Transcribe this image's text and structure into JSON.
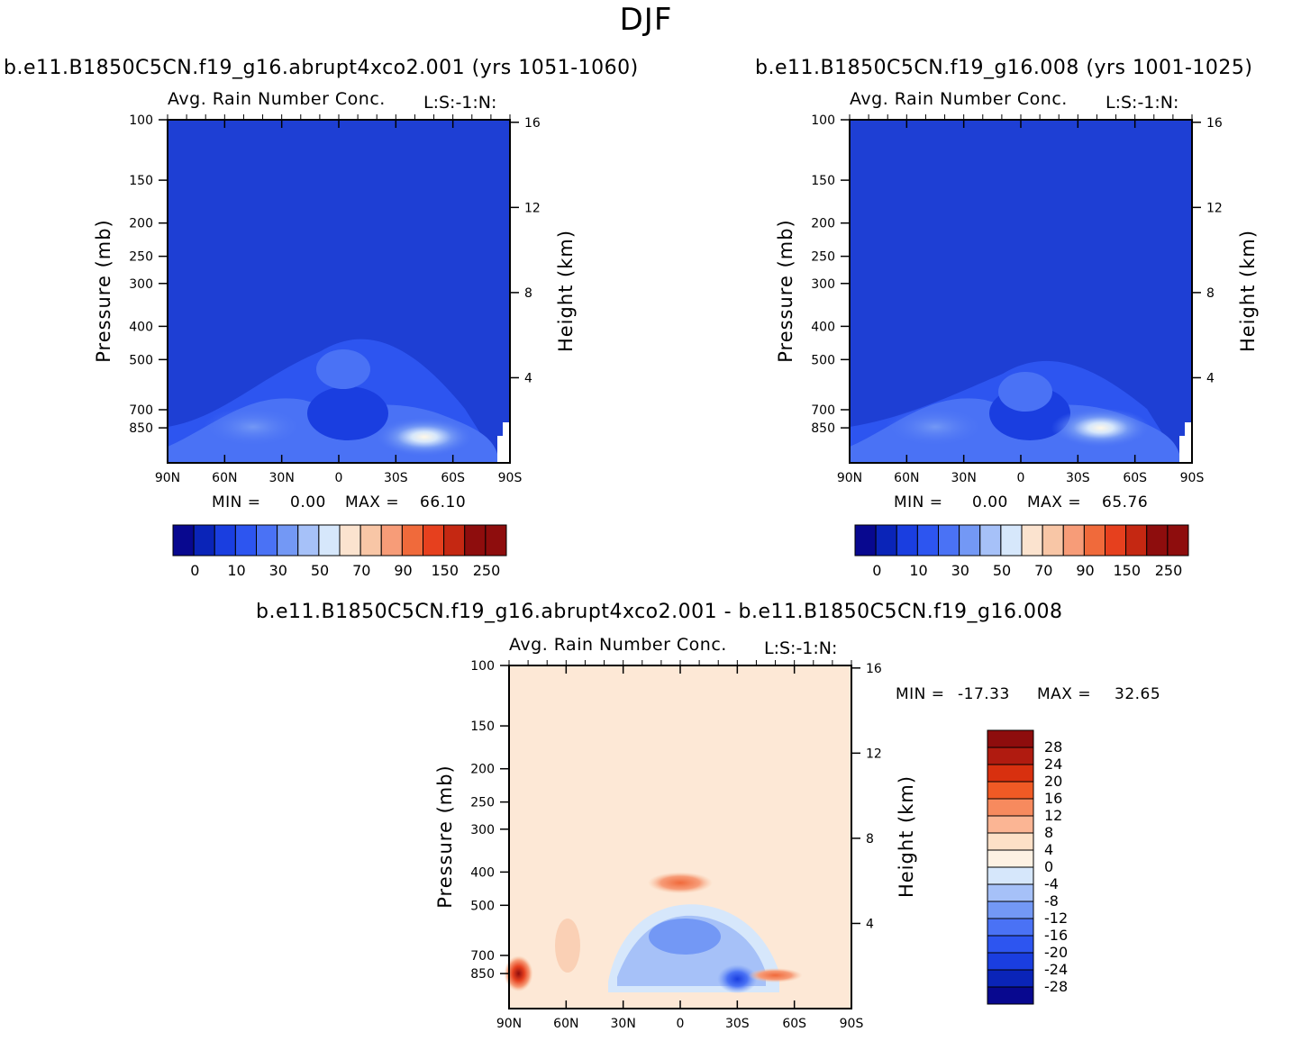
{
  "figure": {
    "title": "DJF"
  },
  "colors": {
    "blue_scale": [
      "#08088f",
      "#0a24b8",
      "#1a3ee0",
      "#2d55f0",
      "#4a72f5",
      "#7398f5",
      "#a6c1f8",
      "#d6e7fb"
    ],
    "red_scale": [
      "#fbe3cf",
      "#f8c6a6",
      "#f79c78",
      "#f06a3b",
      "#e6401e",
      "#c52812",
      "#8e0d0d"
    ],
    "plot_base": "#1e3fd4",
    "diff_base": "#fde8d6"
  },
  "chart_data": [
    {
      "type": "heatmap",
      "name": "panel-a",
      "case_title": "b.e11.B1850C5CN.f19_g16.abrupt4xco2.001 (yrs 1051-1060)",
      "title": "Avg. Rain Number Conc.",
      "tag": "L:S:-1:N:",
      "xlabel": "",
      "ylabel": "Pressure (mb)",
      "ylabel_right": "Height (km)",
      "x_ticks": [
        "90N",
        "60N",
        "30N",
        "0",
        "30S",
        "60S",
        "90S"
      ],
      "y_ticks": [
        "100",
        "150",
        "200",
        "250",
        "300",
        "400",
        "500",
        "700",
        "850"
      ],
      "y_right_ticks": [
        "16",
        "12",
        "8",
        "4"
      ],
      "x_range": [
        "90N",
        "90S"
      ],
      "y_range_mb": [
        100,
        1000
      ],
      "min_label": "MIN =",
      "min": "0.00",
      "max_label": "MAX =",
      "max": "66.10",
      "colorbar_labels": [
        "0",
        "10",
        "30",
        "50",
        "70",
        "90",
        "150",
        "250"
      ],
      "features": [
        {
          "lat": -45,
          "p": 840,
          "value": 66.1
        },
        {
          "lat": 60,
          "p": 780,
          "value": 20
        },
        {
          "lat": 0,
          "p": 600,
          "value": 10
        }
      ]
    },
    {
      "type": "heatmap",
      "name": "panel-b",
      "case_title": "b.e11.B1850C5CN.f19_g16.008 (yrs 1001-1025)",
      "title": "Avg. Rain Number Conc.",
      "tag": "L:S:-1:N:",
      "xlabel": "",
      "ylabel": "Pressure (mb)",
      "ylabel_right": "Height (km)",
      "x_ticks": [
        "90N",
        "60N",
        "30N",
        "0",
        "30S",
        "60S",
        "90S"
      ],
      "y_ticks": [
        "100",
        "150",
        "200",
        "250",
        "300",
        "400",
        "500",
        "700",
        "850"
      ],
      "y_right_ticks": [
        "16",
        "12",
        "8",
        "4"
      ],
      "x_range": [
        "90N",
        "90S"
      ],
      "y_range_mb": [
        100,
        1000
      ],
      "min_label": "MIN =",
      "min": "0.00",
      "max_label": "MAX =",
      "max": "65.76",
      "colorbar_labels": [
        "0",
        "10",
        "30",
        "50",
        "70",
        "90",
        "150",
        "250"
      ],
      "features": [
        {
          "lat": -42,
          "p": 850,
          "value": 65.76
        },
        {
          "lat": 50,
          "p": 800,
          "value": 20
        },
        {
          "lat": 0,
          "p": 620,
          "value": 10
        }
      ]
    },
    {
      "type": "heatmap",
      "name": "panel-diff",
      "case_title": "b.e11.B1850C5CN.f19_g16.abrupt4xco2.001 - b.e11.B1850C5CN.f19_g16.008",
      "title": "Avg. Rain Number Conc.",
      "tag": "L:S:-1:N:",
      "xlabel": "",
      "ylabel": "Pressure (mb)",
      "ylabel_right": "Height (km)",
      "x_ticks": [
        "90N",
        "60N",
        "30N",
        "0",
        "30S",
        "60S",
        "90S"
      ],
      "y_ticks": [
        "100",
        "150",
        "200",
        "250",
        "300",
        "400",
        "500",
        "700",
        "850"
      ],
      "y_right_ticks": [
        "16",
        "12",
        "8",
        "4"
      ],
      "x_range": [
        "90N",
        "90S"
      ],
      "y_range_mb": [
        100,
        1000
      ],
      "min_label": "MIN =",
      "min": "-17.33",
      "max_label": "MAX =",
      "max": "32.65",
      "colorbar_labels": [
        "28",
        "24",
        "20",
        "16",
        "12",
        "8",
        "4",
        "0",
        "-4",
        "-8",
        "-12",
        "-16",
        "-20",
        "-24",
        "-28"
      ],
      "features": [
        {
          "lat": 85,
          "p": 850,
          "value": 32.65
        },
        {
          "lat": 0,
          "p": 430,
          "value": 12
        },
        {
          "lat": -30,
          "p": 820,
          "value": -17.33
        },
        {
          "lat": -50,
          "p": 860,
          "value": 16
        }
      ]
    }
  ]
}
